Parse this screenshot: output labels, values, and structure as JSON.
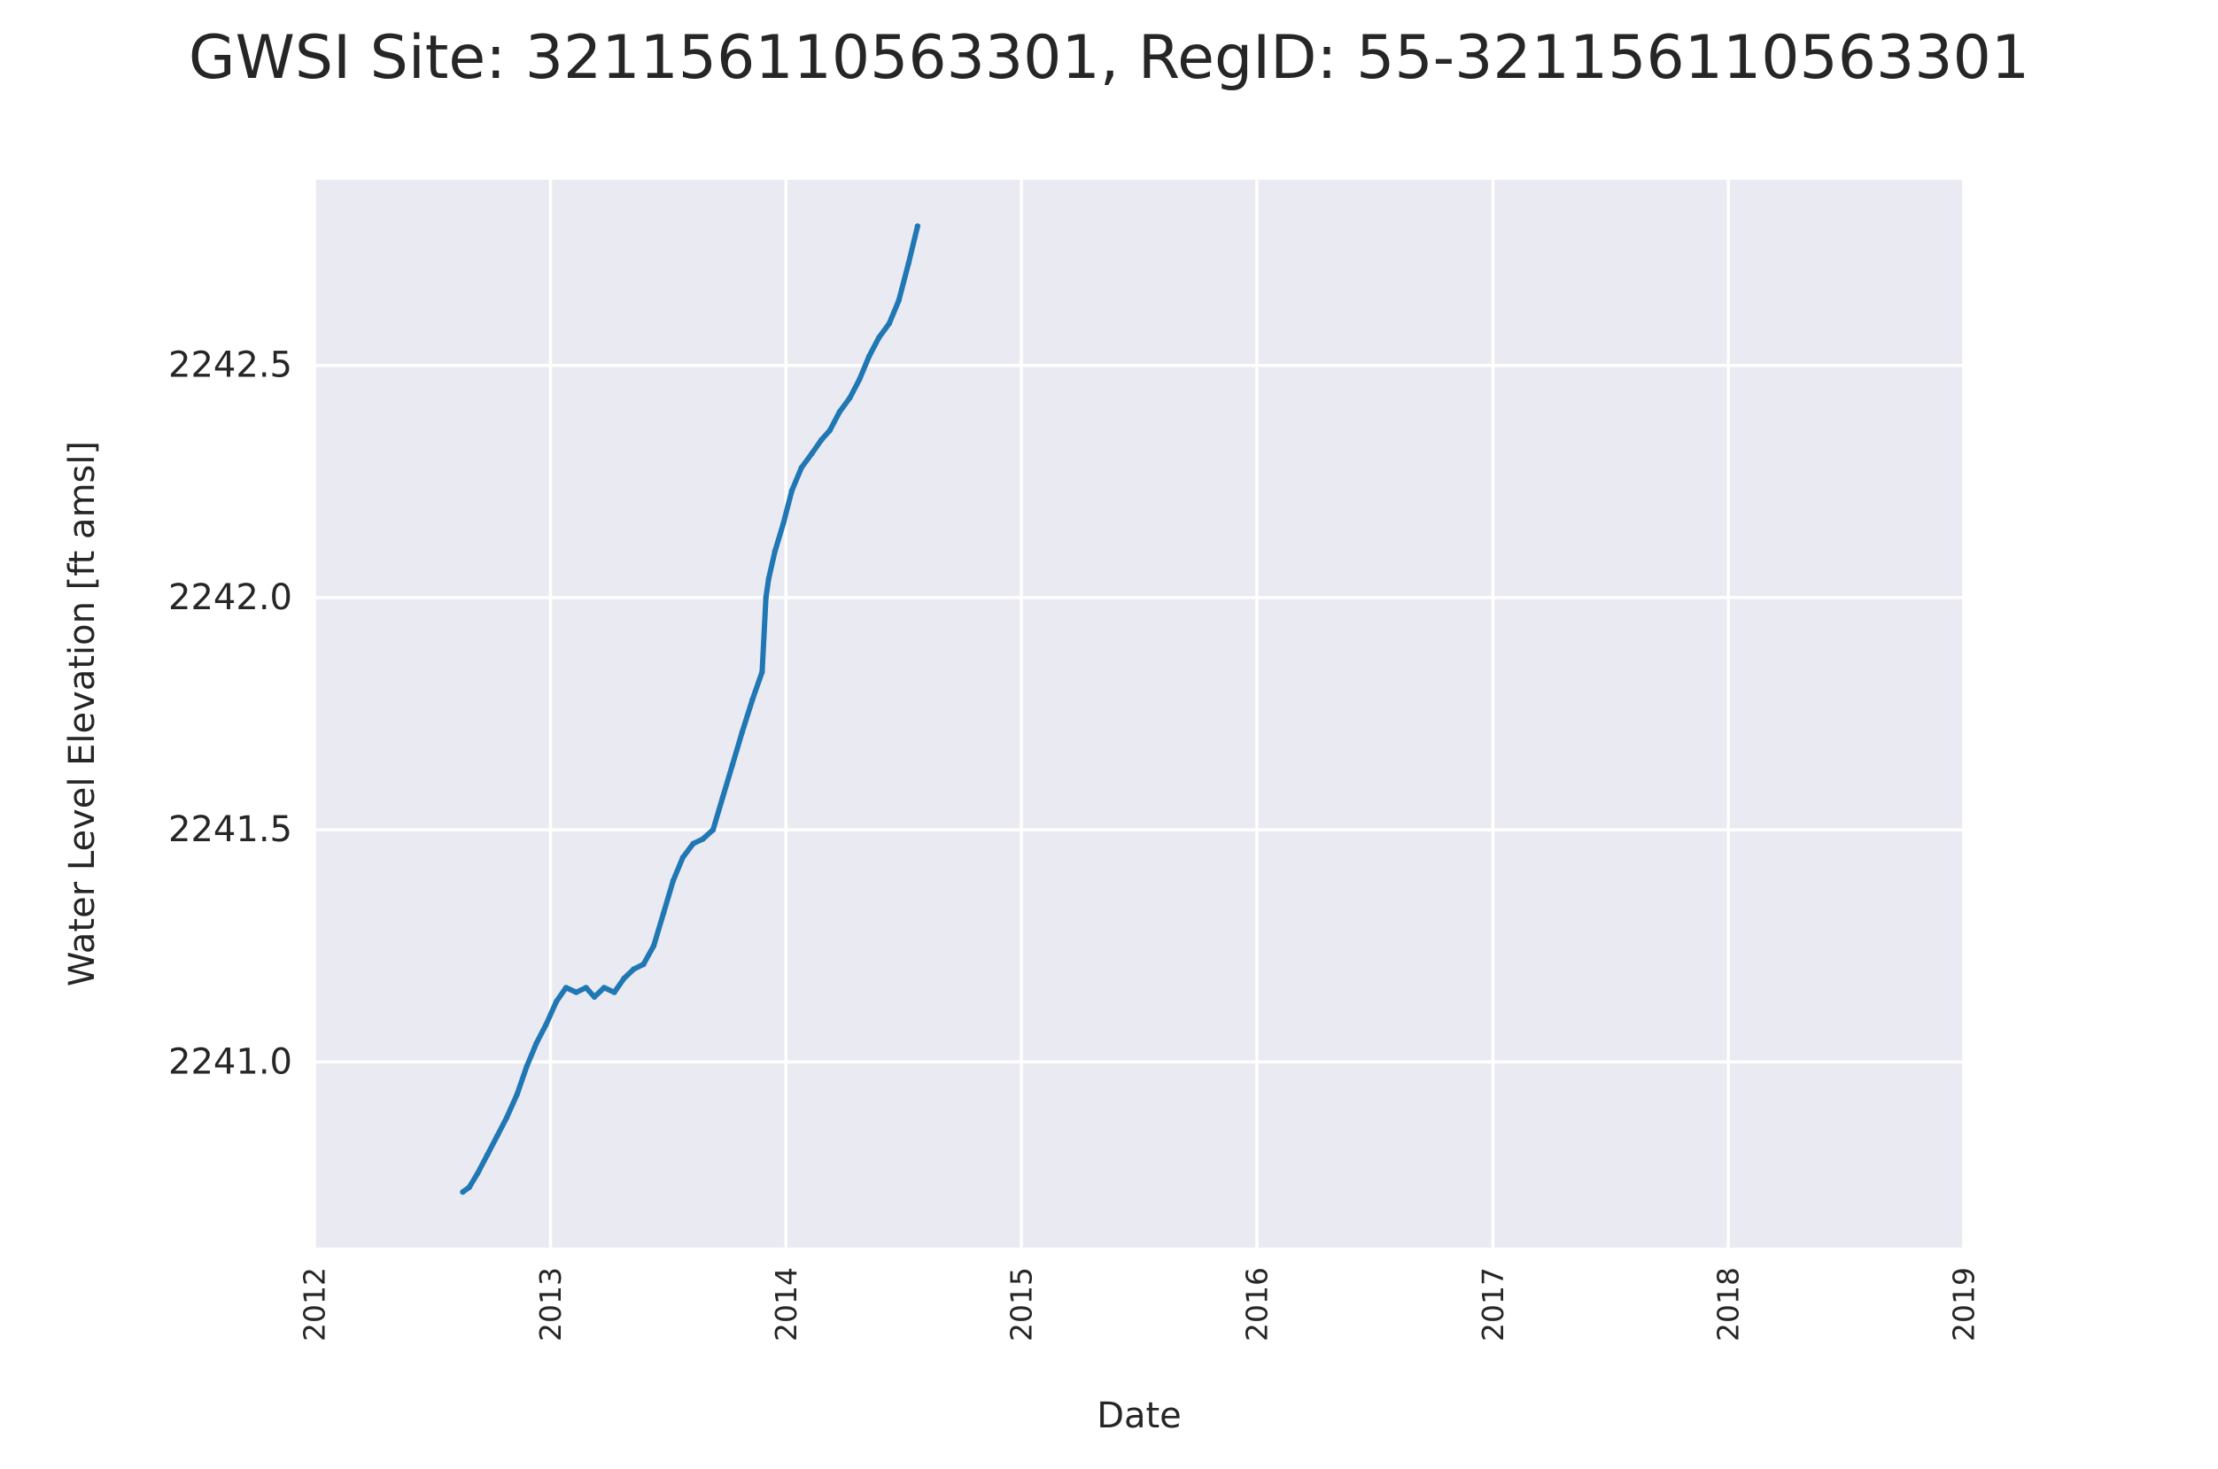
{
  "chart_data": {
    "type": "line",
    "title": "GWSI Site: 321156110563301, RegID: 55-321156110563301",
    "xlabel": "Date",
    "ylabel": "Water Level Elevation [ft amsl]",
    "xlim": [
      "2012-01-01",
      "2019-01-01"
    ],
    "ylim": [
      2240.6,
      2242.9
    ],
    "x_ticks": [
      "2012",
      "2013",
      "2014",
      "2015",
      "2016",
      "2017",
      "2018",
      "2019"
    ],
    "y_ticks": [
      "2241.0",
      "2241.5",
      "2242.0",
      "2242.5"
    ],
    "grid": true,
    "series_color": "#1f77b4",
    "plot_background": "#eaeaf2",
    "series": [
      {
        "x": [
          "2012-08-18",
          "2012-08-28",
          "2012-09-10",
          "2012-09-25",
          "2012-10-10",
          "2012-10-25",
          "2012-11-10",
          "2012-11-25",
          "2012-12-10",
          "2012-12-25",
          "2013-01-10",
          "2013-01-25",
          "2013-02-10",
          "2013-02-25",
          "2013-03-10",
          "2013-03-25",
          "2013-04-10",
          "2013-04-25",
          "2013-05-10",
          "2013-05-25",
          "2013-06-10",
          "2013-06-25",
          "2013-07-10",
          "2013-07-25",
          "2013-08-10",
          "2013-08-25",
          "2013-09-10",
          "2013-09-25",
          "2013-10-10",
          "2013-10-25",
          "2013-11-10",
          "2013-11-25",
          "2013-12-01",
          "2013-12-05",
          "2013-12-15",
          "2013-12-28",
          "2014-01-10",
          "2014-01-25",
          "2014-02-10",
          "2014-02-25",
          "2014-03-10",
          "2014-03-25",
          "2014-04-10",
          "2014-04-25",
          "2014-05-10",
          "2014-05-25",
          "2014-06-10",
          "2014-06-25",
          "2014-07-10",
          "2014-07-24"
        ],
        "y": [
          2240.72,
          2240.73,
          2240.76,
          2240.8,
          2240.84,
          2240.88,
          2240.93,
          2240.99,
          2241.04,
          2241.08,
          2241.13,
          2241.16,
          2241.15,
          2241.16,
          2241.14,
          2241.16,
          2241.15,
          2241.18,
          2241.2,
          2241.21,
          2241.25,
          2241.32,
          2241.39,
          2241.44,
          2241.47,
          2241.48,
          2241.5,
          2241.57,
          2241.64,
          2241.71,
          2241.78,
          2241.84,
          2242.0,
          2242.04,
          2242.1,
          2242.16,
          2242.23,
          2242.28,
          2242.31,
          2242.34,
          2242.36,
          2242.4,
          2242.43,
          2242.47,
          2242.52,
          2242.56,
          2242.59,
          2242.64,
          2242.72,
          2242.8
        ]
      }
    ]
  }
}
